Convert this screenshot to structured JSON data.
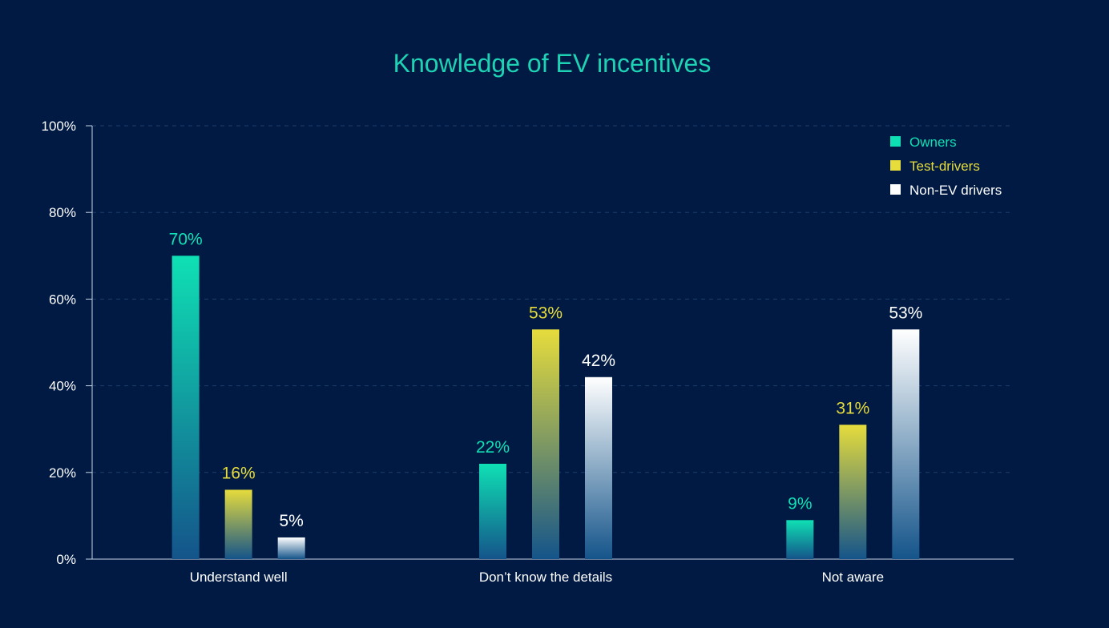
{
  "chart_data": {
    "type": "bar",
    "title": "Knowledge of EV incentives",
    "xlabel": "",
    "ylabel": "",
    "ylim": [
      0,
      100
    ],
    "yticks": [
      "0%",
      "20%",
      "40%",
      "60%",
      "80%",
      "100%"
    ],
    "categories": [
      "Understand well",
      "Don’t know the details",
      "Not aware"
    ],
    "series": [
      {
        "name": "Owners",
        "values": [
          70,
          22,
          9
        ],
        "labels": [
          "70%",
          "22%",
          "9%"
        ],
        "color": "#0fe0b4"
      },
      {
        "name": "Test-drivers",
        "values": [
          16,
          53,
          31
        ],
        "labels": [
          "16%",
          "53%",
          "31%"
        ],
        "color": "#e6dc3c"
      },
      {
        "name": "Non-EV drivers",
        "values": [
          5,
          42,
          53
        ],
        "labels": [
          "5%",
          "42%",
          "53%"
        ],
        "color": "#ffffff"
      }
    ],
    "legend": "top-right",
    "grid": true
  },
  "colors": {
    "background": "#001a44",
    "title": "#1ed2b4",
    "axis": "#c8d4e6",
    "grid": "#1c3e6a",
    "bar_bottom": "#14548a",
    "label_text": "#ffffff"
  }
}
